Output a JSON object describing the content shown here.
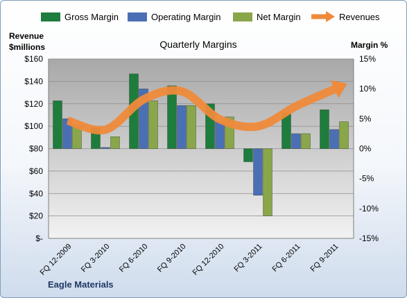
{
  "colors": {
    "gross": "#1e7c3d",
    "operating": "#4a6fb5",
    "net": "#8aa64a",
    "revenues": "#ef8a3a",
    "plot_top": "#a8a8a8",
    "plot_bottom": "#f2f2f2"
  },
  "legend": {
    "gross": "Gross Margin",
    "operating": "Operating Margin",
    "net": "Net Margin",
    "revenues": "Revenues"
  },
  "company": "Eagle Materials",
  "chart_data": {
    "type": "bar",
    "title": "Quarterly Margins",
    "ylabel_left": "Revenue $millions",
    "ylabel_left_lines": [
      "Revenue",
      "$millions"
    ],
    "ylabel_right": "Margin %",
    "categories": [
      "FQ 12-2009",
      "FQ 3-2010",
      "FQ 6-2010",
      "FQ 9-2010",
      "FQ 12-2010",
      "FQ 3-2011",
      "FQ 6-2011",
      "FQ 9-2011"
    ],
    "y_left_ticks": [
      "$-",
      "$20",
      "$40",
      "$60",
      "$80",
      "$100",
      "$120",
      "$140",
      "$160"
    ],
    "y_right_ticks": [
      "-15%",
      "-10%",
      "-5%",
      "0%",
      "5%",
      "10%",
      "15%"
    ],
    "ylim_left": [
      0,
      160
    ],
    "ylim_right": [
      -15,
      15
    ],
    "series": [
      {
        "name": "Gross Margin",
        "type": "bar",
        "axis": "right",
        "values": [
          8.0,
          3.5,
          12.5,
          10.5,
          7.5,
          -2.2,
          6.0,
          6.5
        ]
      },
      {
        "name": "Operating Margin",
        "type": "bar",
        "axis": "right",
        "values": [
          5.0,
          0.2,
          10.0,
          7.2,
          4.5,
          -7.8,
          2.5,
          3.2
        ]
      },
      {
        "name": "Net Margin",
        "type": "bar",
        "axis": "right",
        "values": [
          4.0,
          2.0,
          8.0,
          7.2,
          5.3,
          -11.2,
          2.5,
          4.5
        ]
      },
      {
        "name": "Revenues",
        "type": "line",
        "axis": "left",
        "values": [
          105,
          97,
          124,
          131,
          106,
          100,
          118,
          133
        ]
      }
    ],
    "grid": true,
    "legend_position": "top"
  }
}
